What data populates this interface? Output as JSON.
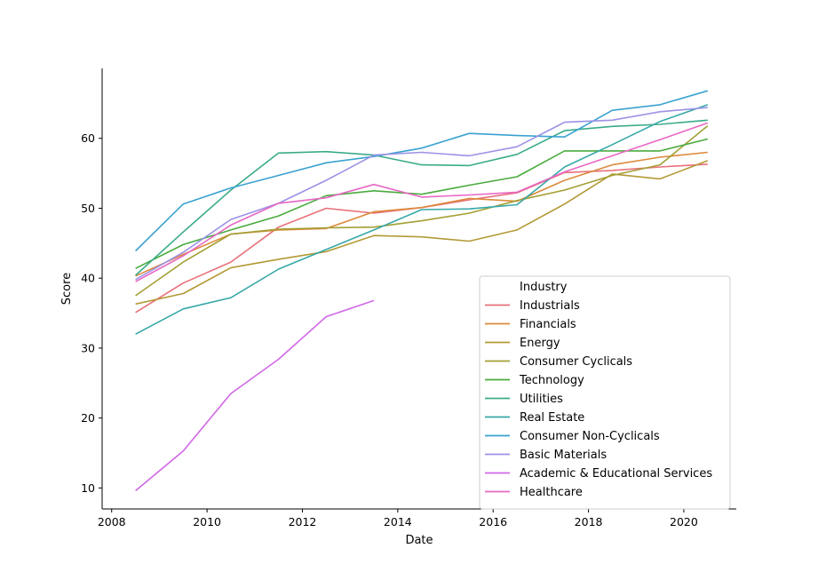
{
  "chart_data": {
    "type": "line",
    "xlabel": "Date",
    "ylabel": "Score",
    "xlim": [
      2007.8,
      2021.1
    ],
    "ylim": [
      7,
      70
    ],
    "xticks": [
      2008,
      2010,
      2012,
      2014,
      2016,
      2018,
      2020
    ],
    "yticks": [
      10,
      20,
      30,
      40,
      50,
      60
    ],
    "grid": false,
    "legend": {
      "title": "Industry",
      "placement": "lower right"
    },
    "x": [
      2008.5,
      2009.5,
      2010.5,
      2011.5,
      2012.5,
      2013.5,
      2014.5,
      2015.5,
      2016.5,
      2017.5,
      2018.5,
      2019.5,
      2020.5
    ],
    "series": [
      {
        "name": "Industrials",
        "color": "#e8707a",
        "values": [
          35.1,
          39.3,
          42.3,
          47.3,
          50.0,
          49.3,
          50.1,
          51.2,
          52.2,
          55.1,
          55.4,
          55.9,
          56.3
        ]
      },
      {
        "name": "Financials",
        "color": "#dc8a3c",
        "values": [
          40.3,
          43.4,
          46.3,
          46.9,
          47.1,
          49.5,
          50.1,
          51.4,
          51.0,
          54.0,
          56.2,
          57.3,
          58.0
        ]
      },
      {
        "name": "Energy",
        "color": "#b39a35",
        "values": [
          36.3,
          37.8,
          41.5,
          42.7,
          43.8,
          46.1,
          45.9,
          45.3,
          46.9,
          50.6,
          54.9,
          54.2,
          56.8
        ]
      },
      {
        "name": "Consumer Cyclicals",
        "color": "#a39f34",
        "values": [
          37.5,
          42.3,
          46.3,
          47.0,
          47.2,
          47.3,
          48.2,
          49.3,
          51.1,
          52.6,
          54.7,
          56.2,
          61.8
        ]
      },
      {
        "name": "Technology",
        "color": "#4aab3e",
        "values": [
          41.4,
          44.8,
          46.9,
          48.9,
          51.8,
          52.5,
          52.0,
          53.3,
          54.5,
          58.2,
          58.2,
          58.2,
          59.9
        ]
      },
      {
        "name": "Utilities",
        "color": "#3aab8a",
        "values": [
          40.4,
          46.6,
          52.6,
          57.9,
          58.1,
          57.6,
          56.2,
          56.1,
          57.7,
          61.1,
          61.7,
          62.0,
          62.6
        ]
      },
      {
        "name": "Real Estate",
        "color": "#38a8a8",
        "values": [
          32.0,
          35.6,
          37.2,
          41.3,
          44.1,
          46.9,
          49.8,
          49.9,
          50.5,
          55.9,
          59.1,
          62.4,
          64.8
        ]
      },
      {
        "name": "Consumer Non-Cyclicals",
        "color": "#3aa2d1",
        "values": [
          43.9,
          50.6,
          52.9,
          54.7,
          56.5,
          57.4,
          58.6,
          60.7,
          60.4,
          60.2,
          64.0,
          64.8,
          66.8
        ]
      },
      {
        "name": "Basic Materials",
        "color": "#9b92e6",
        "values": [
          39.8,
          43.7,
          48.4,
          50.7,
          54.0,
          57.6,
          58.0,
          57.5,
          58.8,
          62.3,
          62.6,
          63.8,
          64.4
        ]
      },
      {
        "name": "Academic & Educational Services",
        "color": "#d168e6",
        "values": [
          9.6,
          15.3,
          23.5,
          28.4,
          34.5,
          36.8,
          null,
          null,
          null,
          null,
          null,
          null,
          null
        ]
      },
      {
        "name": "Healthcare",
        "color": "#e868c4",
        "values": [
          39.5,
          43.2,
          47.6,
          50.7,
          51.5,
          53.4,
          51.6,
          51.9,
          52.3,
          55.2,
          57.5,
          59.8,
          62.2
        ]
      }
    ]
  }
}
